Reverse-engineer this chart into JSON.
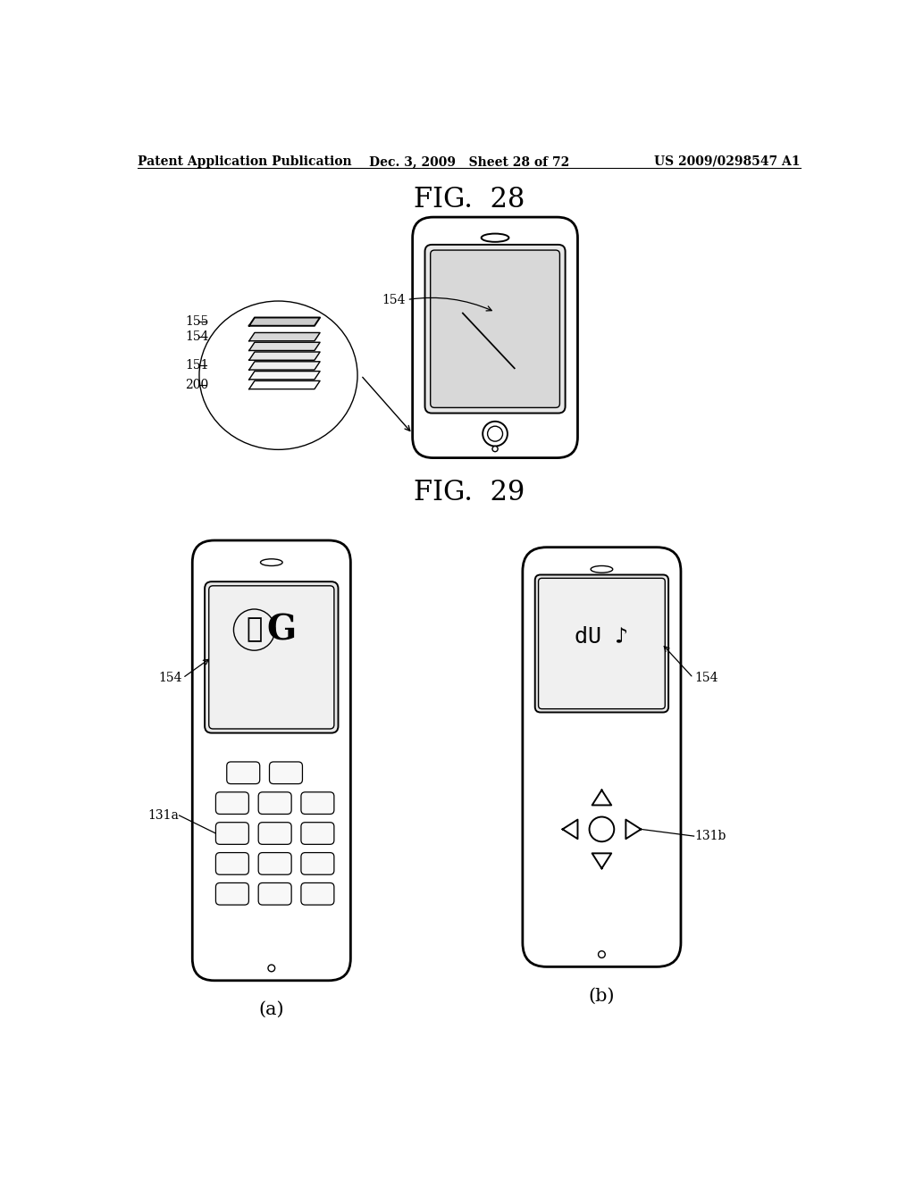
{
  "bg_color": "#ffffff",
  "text_color": "#000000",
  "line_color": "#000000",
  "header_left": "Patent Application Publication",
  "header_mid": "Dec. 3, 2009   Sheet 28 of 72",
  "header_right": "US 2009/0298547 A1",
  "fig28_title": "FIG.  28",
  "fig29_title": "FIG.  29",
  "label_154_fig28": "154",
  "label_155": "155",
  "label_154_zoom": "154",
  "label_151": "151",
  "label_200": "200",
  "label_154a": "154",
  "label_131a": "131a",
  "label_154b": "154",
  "label_131b": "131b",
  "caption_a": "(a)",
  "caption_b": "(b)"
}
